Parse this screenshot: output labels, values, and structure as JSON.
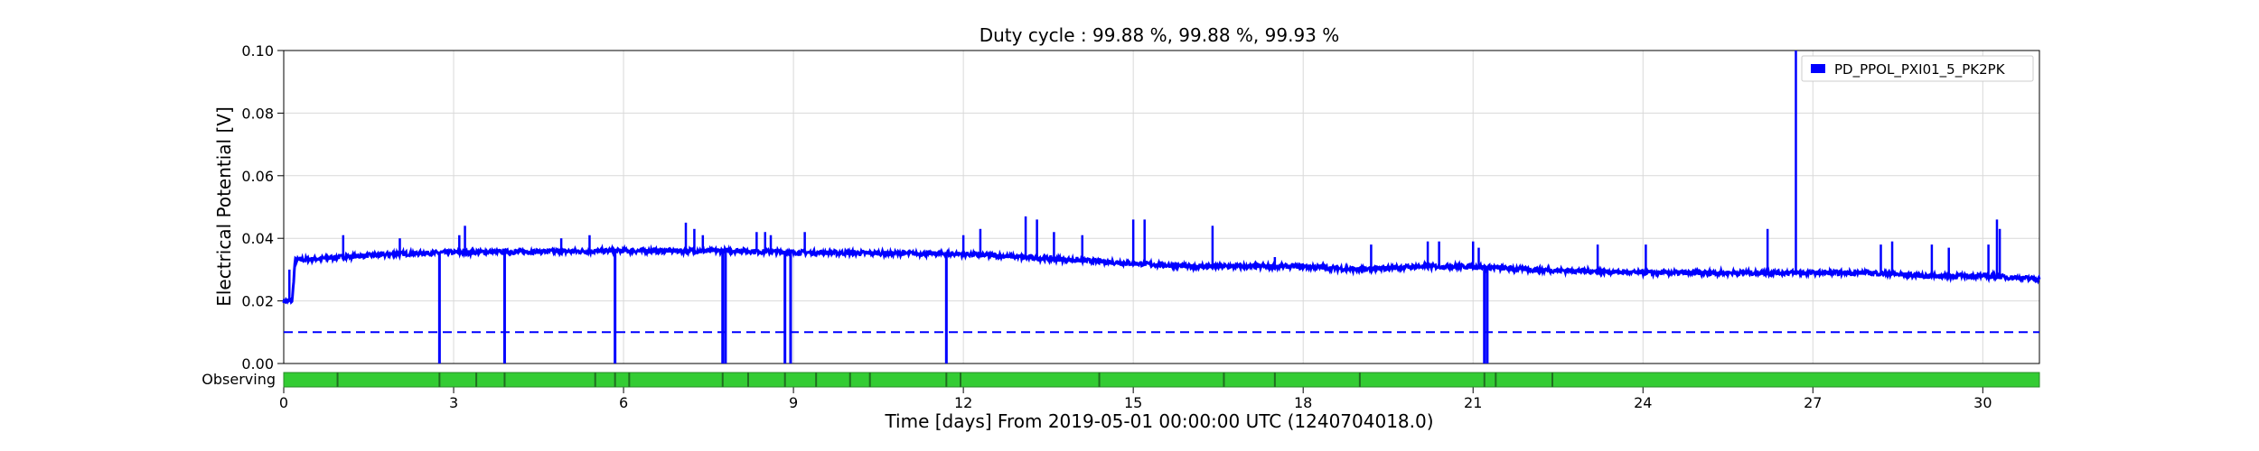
{
  "chart_data": {
    "type": "line",
    "title": "Duty cycle : 99.88 %, 99.88 %, 99.93 %",
    "xlabel": "Time [days] From 2019-05-01 00:00:00 UTC (1240704018.0)",
    "ylabel": "Electrical Potential [V]",
    "xlim": [
      0,
      31
    ],
    "ylim": [
      0,
      0.1
    ],
    "x_ticks": [
      0,
      3,
      6,
      9,
      12,
      15,
      18,
      21,
      24,
      27,
      30
    ],
    "x_tick_labels": [
      "0",
      "3",
      "6",
      "9",
      "12",
      "15",
      "18",
      "21",
      "24",
      "27",
      "30"
    ],
    "y_ticks": [
      0,
      0.02,
      0.04,
      0.06,
      0.08,
      0.1
    ],
    "y_tick_labels": [
      "0.00",
      "0.02",
      "0.04",
      "0.06",
      "0.08",
      "0.10"
    ],
    "grid": true,
    "legend_position": "top-right",
    "series": [
      {
        "name": "PD_PPOL_PXI01_5_PK2PK",
        "color": "#0000ff",
        "baseline": [
          [
            0,
            0.02
          ],
          [
            0.15,
            0.02
          ],
          [
            0.2,
            0.033
          ],
          [
            1,
            0.034
          ],
          [
            2,
            0.035
          ],
          [
            3,
            0.0355
          ],
          [
            6,
            0.036
          ],
          [
            8,
            0.036
          ],
          [
            9,
            0.0355
          ],
          [
            12,
            0.035
          ],
          [
            13,
            0.034
          ],
          [
            14,
            0.033
          ],
          [
            15,
            0.032
          ],
          [
            16,
            0.031
          ],
          [
            18,
            0.031
          ],
          [
            19,
            0.03
          ],
          [
            20,
            0.031
          ],
          [
            21,
            0.031
          ],
          [
            22,
            0.03
          ],
          [
            24,
            0.029
          ],
          [
            26,
            0.029
          ],
          [
            28,
            0.029
          ],
          [
            29,
            0.028
          ],
          [
            30,
            0.028
          ],
          [
            31,
            0.027
          ]
        ],
        "drops": [
          2.75,
          3.9,
          5.85,
          7.75,
          7.8,
          8.85,
          8.95,
          11.7,
          21.2,
          21.25
        ],
        "spikes": [
          [
            0.1,
            0.03
          ],
          [
            1.05,
            0.041
          ],
          [
            2.05,
            0.04
          ],
          [
            3.1,
            0.041
          ],
          [
            3.2,
            0.044
          ],
          [
            4.9,
            0.04
          ],
          [
            5.4,
            0.041
          ],
          [
            7.1,
            0.045
          ],
          [
            7.25,
            0.043
          ],
          [
            7.4,
            0.041
          ],
          [
            8.35,
            0.042
          ],
          [
            8.5,
            0.042
          ],
          [
            8.6,
            0.041
          ],
          [
            9.2,
            0.042
          ],
          [
            12.0,
            0.041
          ],
          [
            12.3,
            0.043
          ],
          [
            13.1,
            0.047
          ],
          [
            13.3,
            0.046
          ],
          [
            13.6,
            0.042
          ],
          [
            14.1,
            0.041
          ],
          [
            15.0,
            0.046
          ],
          [
            15.2,
            0.046
          ],
          [
            16.4,
            0.044
          ],
          [
            17.5,
            0.034
          ],
          [
            19.2,
            0.038
          ],
          [
            20.2,
            0.039
          ],
          [
            20.4,
            0.039
          ],
          [
            21.0,
            0.039
          ],
          [
            21.1,
            0.037
          ],
          [
            23.2,
            0.038
          ],
          [
            24.05,
            0.038
          ],
          [
            26.2,
            0.043
          ],
          [
            26.7,
            0.1
          ],
          [
            28.2,
            0.038
          ],
          [
            28.4,
            0.039
          ],
          [
            29.1,
            0.038
          ],
          [
            29.4,
            0.037
          ],
          [
            30.1,
            0.038
          ],
          [
            30.25,
            0.046
          ],
          [
            30.3,
            0.043
          ]
        ]
      }
    ],
    "threshold": {
      "value": 0.01,
      "style": "dashed",
      "color": "#0000ff"
    },
    "segment_bar": {
      "label": "Observing",
      "color": "#33cc33",
      "edge_color": "#2a8a2a",
      "markers": [
        0.95,
        2.75,
        3.4,
        3.9,
        5.5,
        5.85,
        6.1,
        7.75,
        8.2,
        8.85,
        9.4,
        10.0,
        10.35,
        11.7,
        11.95,
        14.4,
        16.6,
        17.5,
        19.0,
        21.2,
        21.4,
        22.4
      ]
    }
  }
}
